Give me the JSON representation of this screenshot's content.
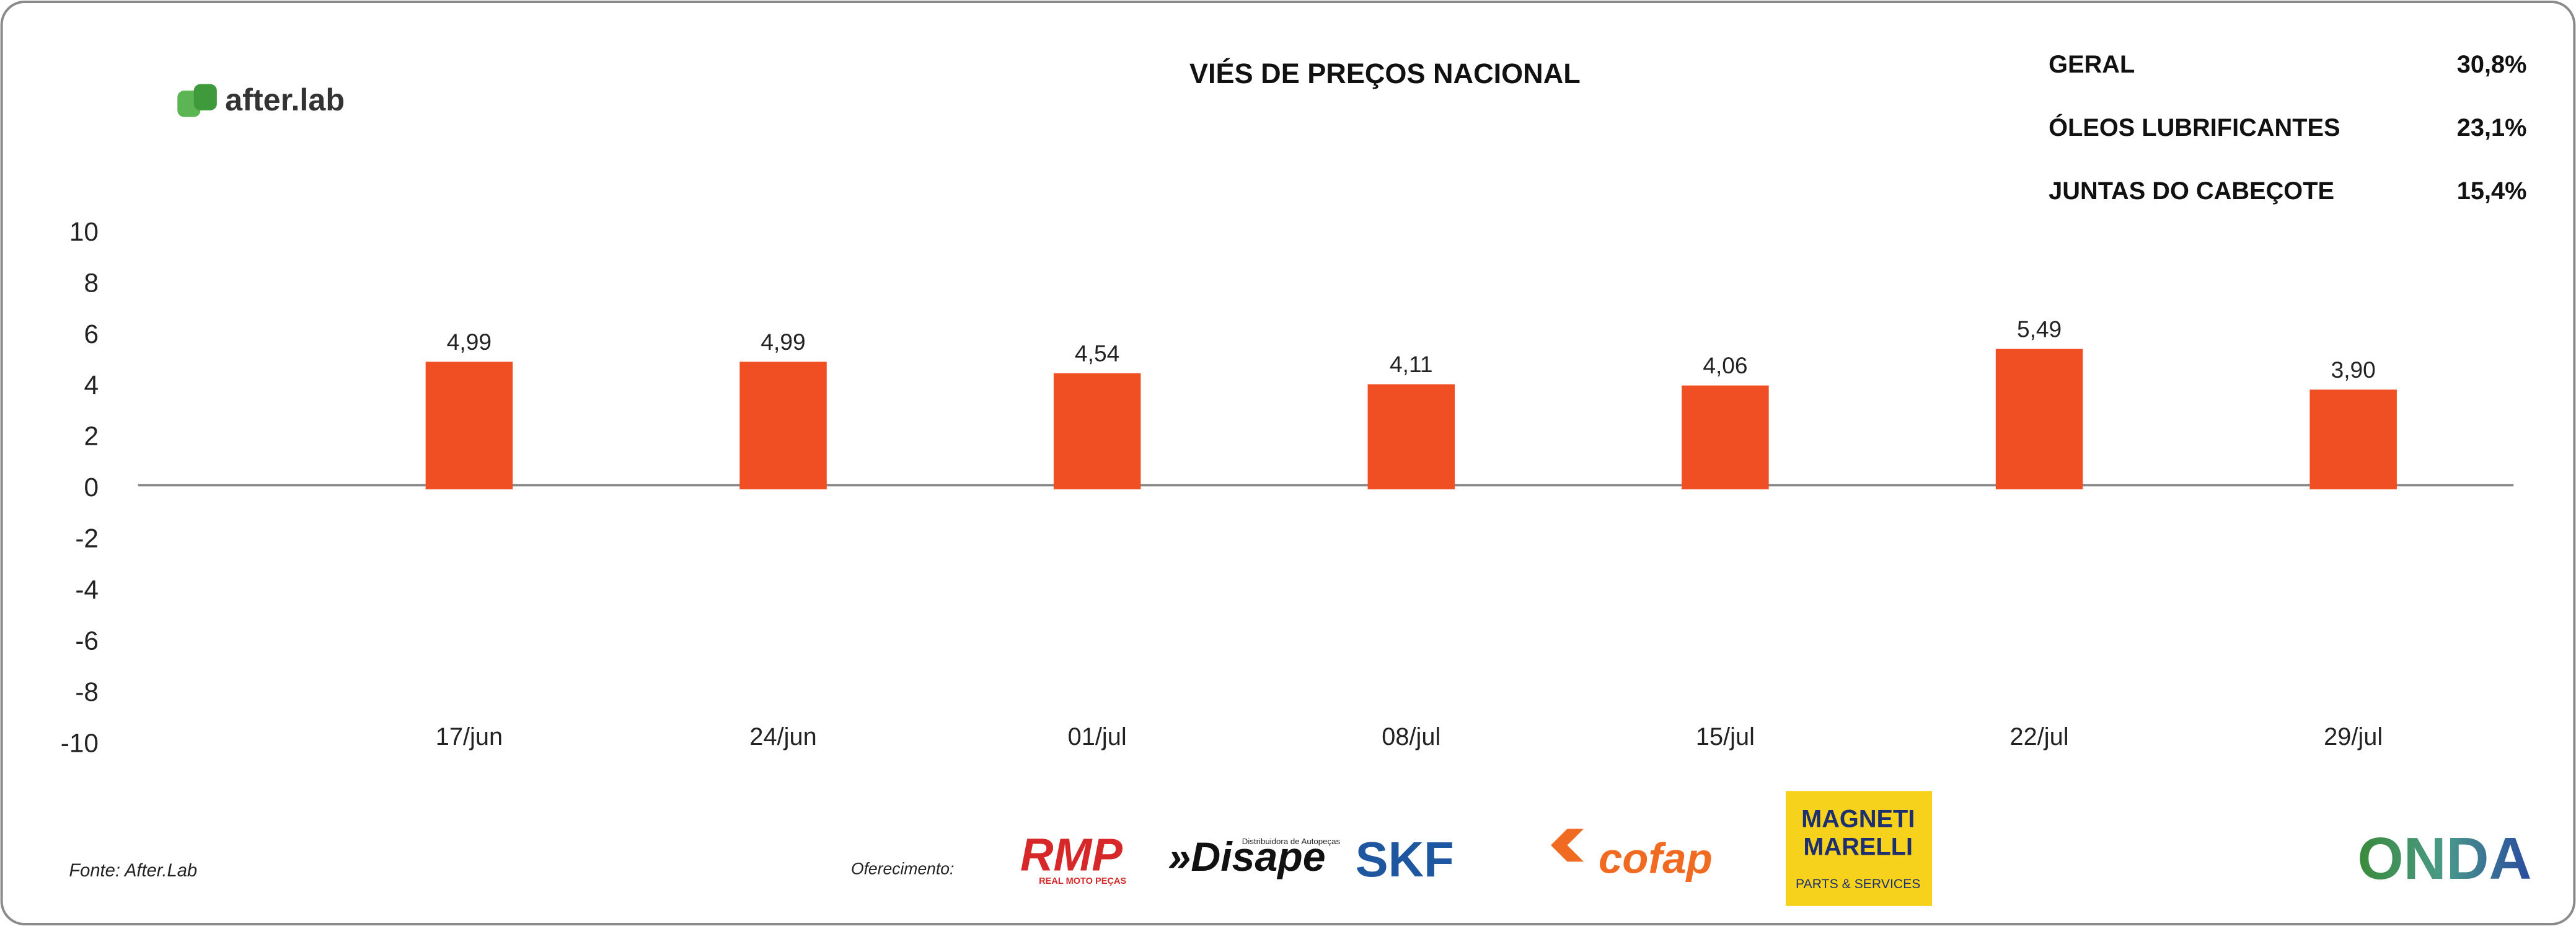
{
  "chart_data": {
    "type": "bar",
    "title": "VIÉS DE PREÇOS NACIONAL",
    "categories": [
      "17/jun",
      "24/jun",
      "01/jul",
      "08/jul",
      "15/jul",
      "22/jul",
      "29/jul"
    ],
    "values": [
      4.99,
      4.99,
      4.54,
      4.11,
      4.06,
      5.49,
      3.9
    ],
    "value_labels": [
      "4,99",
      "4,99",
      "4,54",
      "4,11",
      "4,06",
      "5,49",
      "3,90"
    ],
    "color": "#f04e23",
    "ylim": [
      -10,
      10
    ],
    "yticks": [
      10,
      8,
      6,
      4,
      2,
      0,
      -2,
      -4,
      -6,
      -8,
      -10
    ],
    "grid": false
  },
  "summary": [
    {
      "label": "GERAL",
      "value": "30,8%"
    },
    {
      "label": "ÓLEOS LUBRIFICANTES",
      "value": "23,1%"
    },
    {
      "label": "JUNTAS DO CABEÇOTE",
      "value": "15,4%"
    }
  ],
  "brand": "after.lab",
  "footer": {
    "source": "Fonte: After.Lab",
    "sponsors_label": "Oferecimento:"
  },
  "sponsors": {
    "rmp": "RMP",
    "rmp_tagline": "REAL MOTO PEÇAS",
    "disape": "»Disape",
    "disape_tagline": "Distribuidora de Autopeças",
    "skf": "SKF",
    "cofap": "cofap",
    "magneti": "MAGNETI",
    "marelli": "MARELLI",
    "marelli_tagline": "PARTS & SERVICES",
    "onda": "ONDA"
  }
}
